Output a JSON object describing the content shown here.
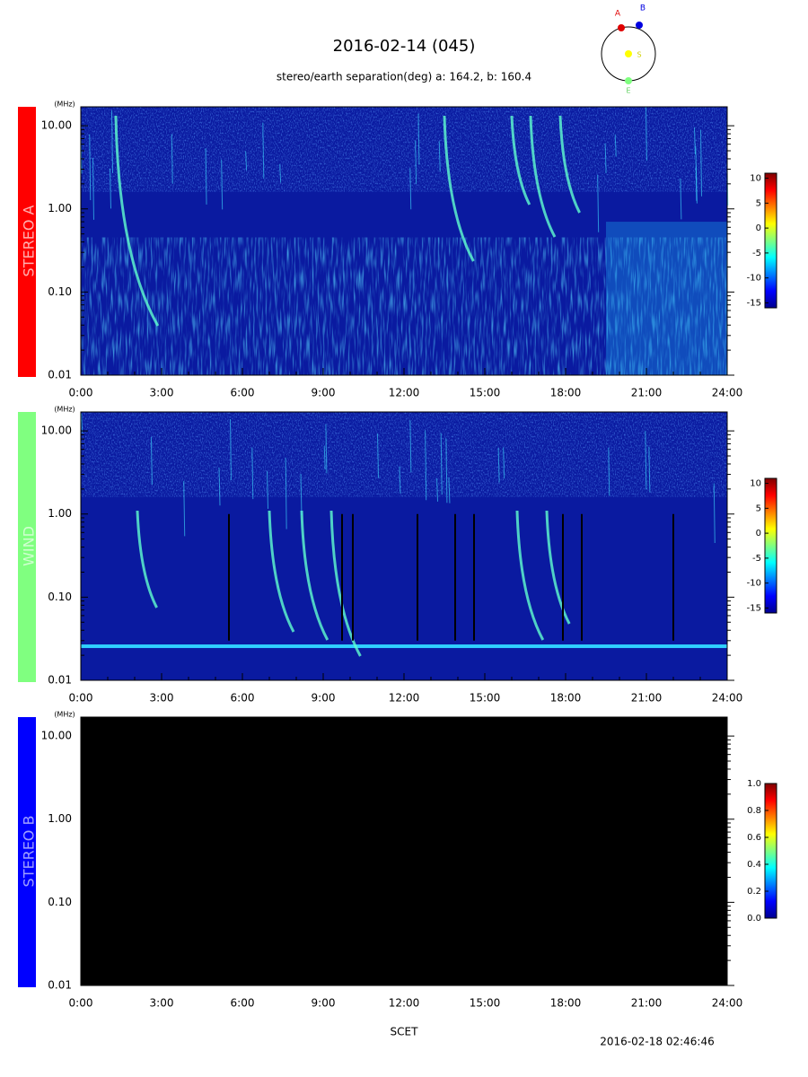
{
  "title": "2016-02-14 (045)",
  "subtitle": "stereo/earth separation(deg) a: 164.2, b: 160.4",
  "orbit": {
    "a": "A",
    "b": "B",
    "s": "S",
    "e": "E"
  },
  "xlabel": "SCET",
  "timestamp": "2016-02-18 02:46:46",
  "chart_data": [
    {
      "type": "spectrogram",
      "label": "STEREO A",
      "label_color": "#ff0000",
      "yunit": "(MHz)",
      "log_y": true,
      "ylim": [
        0.01,
        16.9
      ],
      "yticks": [
        {
          "value": 10,
          "label": "10.00"
        },
        {
          "value": 1,
          "label": "1.00"
        },
        {
          "value": 0.1,
          "label": "0.10"
        },
        {
          "value": 0.01,
          "label": "0.01"
        }
      ],
      "xlim": [
        0,
        24
      ],
      "xticks": [
        {
          "value": 0,
          "label": "0:00"
        },
        {
          "value": 3,
          "label": "3:00"
        },
        {
          "value": 6,
          "label": "6:00"
        },
        {
          "value": 9,
          "label": "9:00"
        },
        {
          "value": 12,
          "label": "12:00"
        },
        {
          "value": 15,
          "label": "15:00"
        },
        {
          "value": 18,
          "label": "18:00"
        },
        {
          "value": 21,
          "label": "21:00"
        },
        {
          "value": 24,
          "label": "24:00"
        }
      ],
      "clim": [
        -16,
        11
      ],
      "cticks": [
        10,
        5,
        0,
        -5,
        -10,
        -15
      ]
    },
    {
      "type": "spectrogram",
      "label": "WIND",
      "label_color": "#80ff80",
      "yunit": "(MHz)",
      "log_y": true,
      "ylim": [
        0.01,
        16.9
      ],
      "yticks": [
        {
          "value": 10,
          "label": "10.00"
        },
        {
          "value": 1,
          "label": "1.00"
        },
        {
          "value": 0.1,
          "label": "0.10"
        },
        {
          "value": 0.01,
          "label": "0.01"
        }
      ],
      "xlim": [
        0,
        24
      ],
      "xticks": [
        {
          "value": 0,
          "label": "0:00"
        },
        {
          "value": 3,
          "label": "3:00"
        },
        {
          "value": 6,
          "label": "6:00"
        },
        {
          "value": 9,
          "label": "9:00"
        },
        {
          "value": 12,
          "label": "12:00"
        },
        {
          "value": 15,
          "label": "15:00"
        },
        {
          "value": 18,
          "label": "18:00"
        },
        {
          "value": 21,
          "label": "21:00"
        },
        {
          "value": 24,
          "label": "24:00"
        }
      ],
      "clim": [
        -16,
        11
      ],
      "cticks": [
        10,
        5,
        0,
        -5,
        -10,
        -15
      ]
    },
    {
      "type": "spectrogram",
      "label": "STEREO B",
      "label_color": "#0000ff",
      "yunit": "(MHz)",
      "log_y": true,
      "empty": true,
      "ylim": [
        0.01,
        16.9
      ],
      "yticks": [
        {
          "value": 10,
          "label": "10.00"
        },
        {
          "value": 1,
          "label": "1.00"
        },
        {
          "value": 0.1,
          "label": "0.10"
        },
        {
          "value": 0.01,
          "label": "0.01"
        }
      ],
      "xlim": [
        0,
        24
      ],
      "xticks": [
        {
          "value": 0,
          "label": "0:00"
        },
        {
          "value": 3,
          "label": "3:00"
        },
        {
          "value": 6,
          "label": "6:00"
        },
        {
          "value": 9,
          "label": "9:00"
        },
        {
          "value": 12,
          "label": "12:00"
        },
        {
          "value": 15,
          "label": "15:00"
        },
        {
          "value": 18,
          "label": "18:00"
        },
        {
          "value": 21,
          "label": "21:00"
        },
        {
          "value": 24,
          "label": "24:00"
        }
      ],
      "clim": [
        0,
        1
      ],
      "cticks": [
        {
          "value": 1,
          "label": "1.0"
        },
        {
          "value": 0.8,
          "label": "0.8"
        },
        {
          "value": 0.6,
          "label": "0.6"
        },
        {
          "value": 0.4,
          "label": "0.4"
        },
        {
          "value": 0.2,
          "label": "0.2"
        },
        {
          "value": 0,
          "label": "0.0"
        }
      ]
    }
  ]
}
